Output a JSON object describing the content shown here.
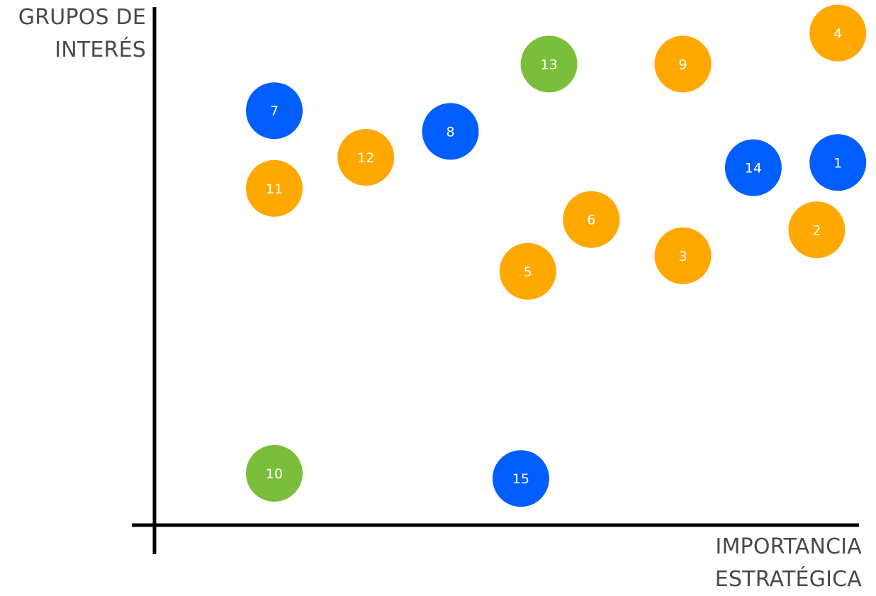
{
  "chart_data": {
    "type": "scatter",
    "ylabel_lines": [
      "GRUPOS DE",
      "INTERÉS"
    ],
    "xlabel_lines": [
      "IMPORTANCIA",
      "ESTRATÉGICA"
    ],
    "colors": {
      "orange": "#FFA800",
      "blue": "#005EFF",
      "green": "#7BBE3C",
      "axis": "#000000",
      "label_text": "#ffffff",
      "title_text": "#4a4a4a"
    },
    "x_range": [
      0,
      100
    ],
    "y_range": [
      0,
      100
    ],
    "points": [
      {
        "label": "1",
        "x": 97,
        "y": 70,
        "color": "blue"
      },
      {
        "label": "2",
        "x": 94,
        "y": 57,
        "color": "orange"
      },
      {
        "label": "3",
        "x": 75,
        "y": 52,
        "color": "orange"
      },
      {
        "label": "4",
        "x": 97,
        "y": 95,
        "color": "orange"
      },
      {
        "label": "5",
        "x": 53,
        "y": 49,
        "color": "orange"
      },
      {
        "label": "6",
        "x": 62,
        "y": 59,
        "color": "orange"
      },
      {
        "label": "7",
        "x": 17,
        "y": 80,
        "color": "blue"
      },
      {
        "label": "8",
        "x": 42,
        "y": 76,
        "color": "blue"
      },
      {
        "label": "9",
        "x": 75,
        "y": 89,
        "color": "orange"
      },
      {
        "label": "10",
        "x": 17,
        "y": 10,
        "color": "green"
      },
      {
        "label": "11",
        "x": 17,
        "y": 65,
        "color": "orange"
      },
      {
        "label": "12",
        "x": 30,
        "y": 71,
        "color": "orange"
      },
      {
        "label": "13",
        "x": 56,
        "y": 89,
        "color": "green"
      },
      {
        "label": "14",
        "x": 85,
        "y": 69,
        "color": "blue"
      },
      {
        "label": "15",
        "x": 52,
        "y": 9,
        "color": "blue"
      }
    ]
  }
}
